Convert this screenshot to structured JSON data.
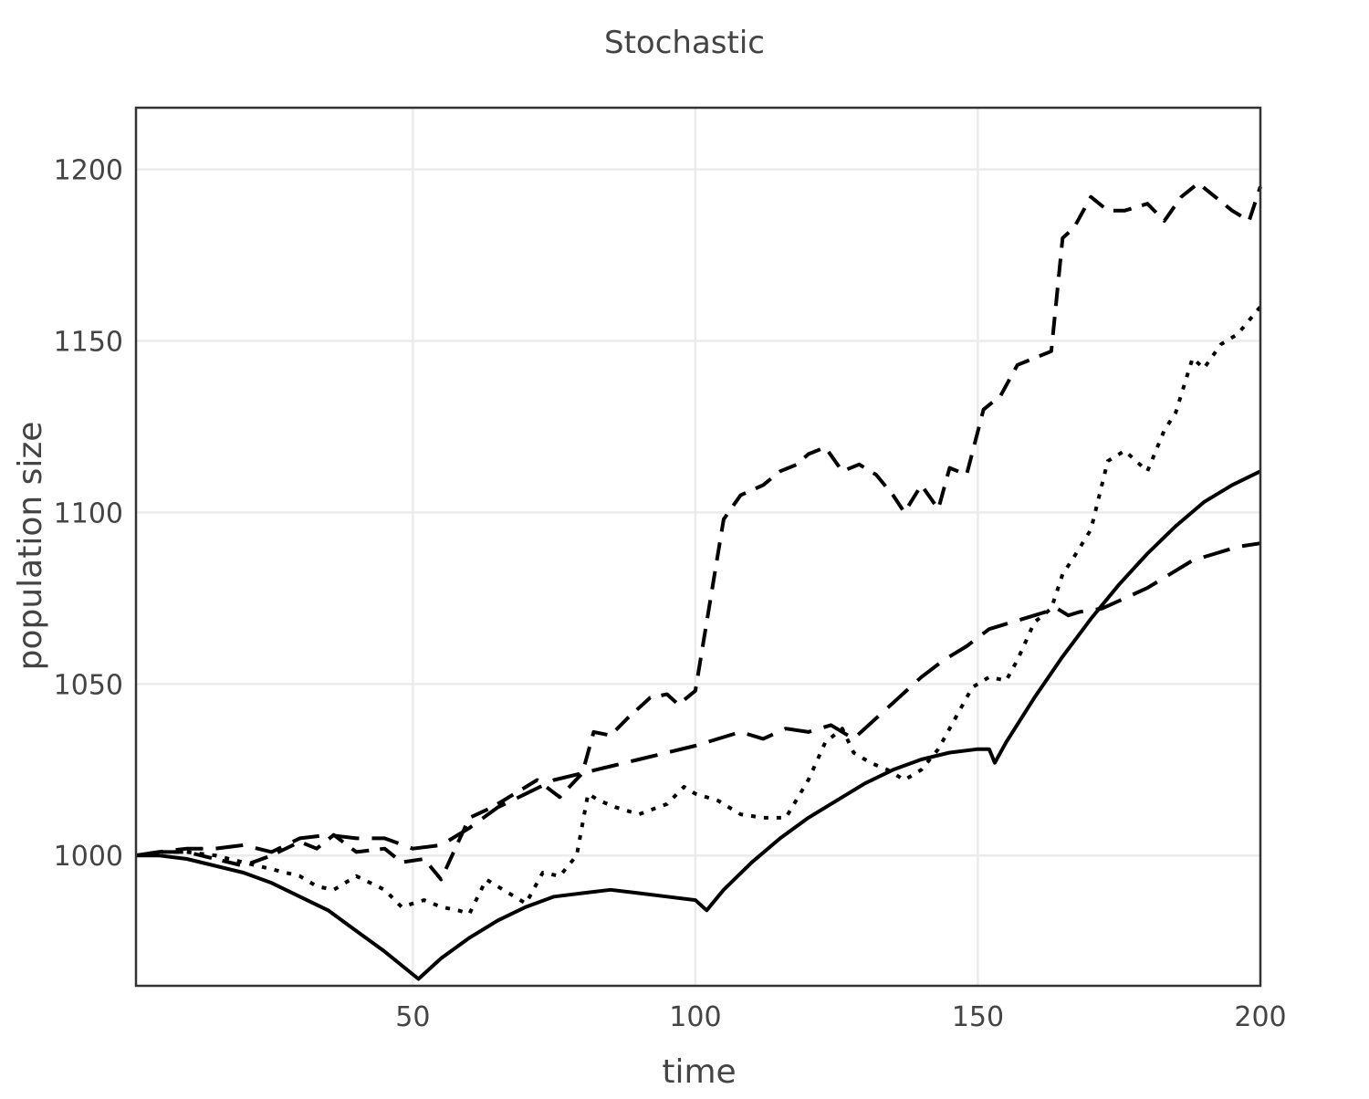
{
  "chart_data": {
    "type": "line",
    "title": "Stochastic",
    "xlabel": "time",
    "ylabel": "population size",
    "xlim": [
      1,
      200
    ],
    "ylim": [
      962,
      1218
    ],
    "x_ticks": [
      50,
      100,
      150,
      200
    ],
    "y_ticks": [
      1000,
      1050,
      1100,
      1150,
      1200
    ],
    "grid": true,
    "legend": "none",
    "colors": {
      "line": "#000000",
      "grid": "#ebebeb",
      "frame": "#333333",
      "text": "#444444"
    },
    "series": [
      {
        "style": "solid",
        "x": [
          1,
          5,
          10,
          15,
          20,
          25,
          30,
          35,
          40,
          45,
          51,
          55,
          60,
          65,
          70,
          75,
          80,
          85,
          90,
          95,
          100,
          102,
          105,
          110,
          115,
          120,
          125,
          130,
          135,
          140,
          145,
          150,
          152,
          153,
          155,
          160,
          165,
          170,
          175,
          180,
          185,
          190,
          195,
          200
        ],
        "y": [
          1000,
          1000,
          999,
          997,
          995,
          992,
          988,
          984,
          978,
          972,
          964,
          970,
          976,
          981,
          985,
          988,
          989,
          990,
          989,
          988,
          987,
          984,
          990,
          998,
          1005,
          1011,
          1016,
          1021,
          1025,
          1028,
          1030,
          1031,
          1031,
          1027,
          1033,
          1046,
          1058,
          1069,
          1079,
          1088,
          1096,
          1103,
          1108,
          1112
        ]
      },
      {
        "style": "dotted",
        "x": [
          1,
          5,
          10,
          15,
          20,
          25,
          30,
          33,
          36,
          40,
          45,
          48,
          52,
          55,
          58,
          60,
          63,
          66,
          70,
          73,
          76,
          79,
          81,
          83,
          86,
          90,
          95,
          98,
          100,
          104,
          108,
          112,
          116,
          120,
          123,
          126,
          128,
          131,
          134,
          137,
          140,
          143,
          146,
          149,
          152,
          155,
          157,
          160,
          163,
          165,
          167,
          170,
          173,
          176,
          180,
          183,
          185,
          188,
          190,
          193,
          196,
          200
        ],
        "y": [
          1000,
          1001,
          1001,
          1000,
          998,
          996,
          994,
          991,
          990,
          994,
          990,
          985,
          987,
          985,
          984,
          983,
          993,
          990,
          986,
          995,
          994,
          1000,
          1018,
          1016,
          1014,
          1012,
          1015,
          1020,
          1018,
          1016,
          1012,
          1011,
          1011,
          1022,
          1033,
          1037,
          1030,
          1027,
          1025,
          1022,
          1025,
          1031,
          1040,
          1049,
          1052,
          1051,
          1057,
          1068,
          1072,
          1082,
          1087,
          1095,
          1115,
          1118,
          1112,
          1124,
          1129,
          1145,
          1142,
          1149,
          1152,
          1160
        ]
      },
      {
        "style": "dashed",
        "x": [
          1,
          5,
          10,
          15,
          20,
          25,
          30,
          33,
          36,
          40,
          45,
          48,
          52,
          55,
          60,
          64,
          68,
          72,
          76,
          80,
          82,
          85,
          88,
          92,
          95,
          97,
          100,
          102,
          105,
          108,
          112,
          115,
          118,
          120,
          123,
          126,
          129,
          132,
          135,
          137,
          140,
          143,
          145,
          148,
          151,
          154,
          157,
          160,
          163,
          165,
          167,
          170,
          173,
          176,
          180,
          183,
          186,
          189,
          192,
          195,
          198,
          200
        ],
        "y": [
          1000,
          1001,
          1001,
          999,
          997,
          1000,
          1004,
          1002,
          1006,
          1001,
          1002,
          998,
          999,
          993,
          1011,
          1014,
          1018,
          1022,
          1017,
          1024,
          1036,
          1035,
          1040,
          1046,
          1047,
          1044,
          1048,
          1068,
          1098,
          1105,
          1108,
          1112,
          1114,
          1117,
          1119,
          1112,
          1114,
          1111,
          1105,
          1100,
          1108,
          1101,
          1113,
          1111,
          1130,
          1134,
          1143,
          1145,
          1147,
          1180,
          1183,
          1192,
          1188,
          1188,
          1190,
          1185,
          1192,
          1196,
          1192,
          1188,
          1185,
          1195
        ]
      },
      {
        "style": "longdash",
        "x": [
          1,
          5,
          10,
          15,
          20,
          25,
          30,
          35,
          40,
          45,
          50,
          55,
          60,
          65,
          70,
          75,
          80,
          85,
          90,
          95,
          100,
          104,
          108,
          112,
          116,
          120,
          124,
          128,
          132,
          136,
          140,
          144,
          148,
          152,
          156,
          160,
          164,
          166,
          168,
          172,
          176,
          180,
          184,
          188,
          192,
          196,
          200
        ],
        "y": [
          1000,
          1001,
          1002,
          1002,
          1003,
          1001,
          1005,
          1006,
          1005,
          1005,
          1002,
          1003,
          1008,
          1014,
          1018,
          1022,
          1024,
          1026,
          1028,
          1030,
          1032,
          1034,
          1036,
          1034,
          1037,
          1036,
          1038,
          1034,
          1040,
          1046,
          1052,
          1057,
          1061,
          1066,
          1068,
          1070,
          1072,
          1070,
          1071,
          1072,
          1075,
          1078,
          1082,
          1086,
          1088,
          1090,
          1091
        ]
      }
    ]
  }
}
